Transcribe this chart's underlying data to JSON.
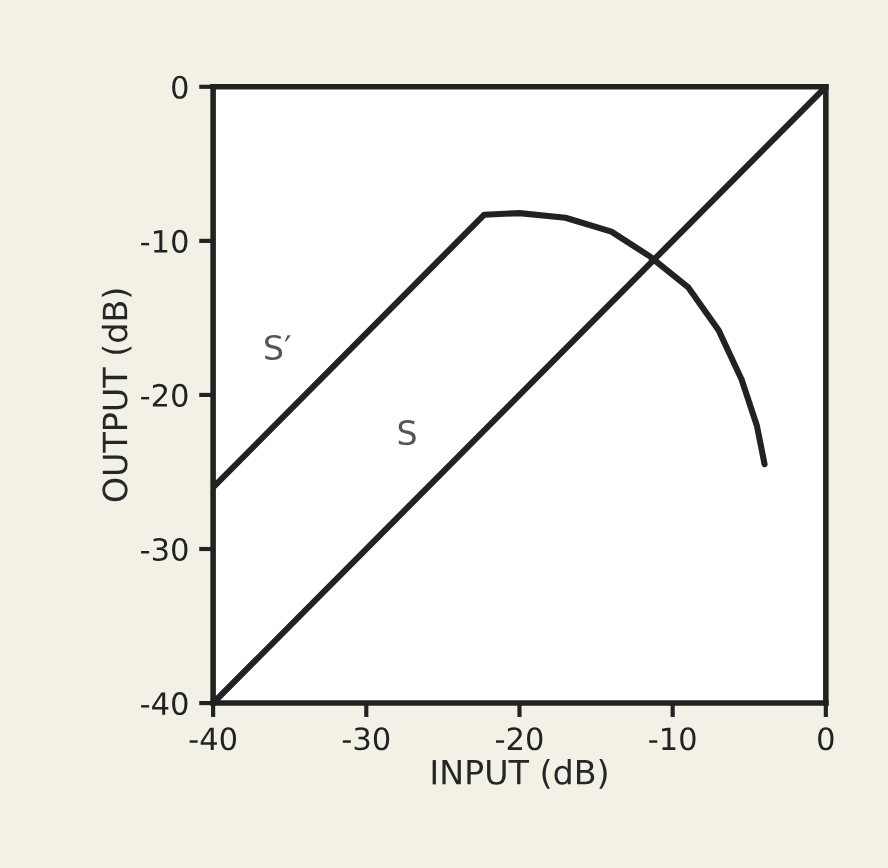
{
  "chart_data": {
    "type": "line",
    "xlabel": "INPUT (dB)",
    "ylabel": "OUTPUT (dB)",
    "xlim": [
      -40,
      0
    ],
    "ylim": [
      -40,
      0
    ],
    "xticks": [
      -40,
      -30,
      -20,
      -10,
      0
    ],
    "yticks": [
      -40,
      -30,
      -20,
      -10,
      0
    ],
    "grid": false,
    "legend": false,
    "marker": "none",
    "line_style": "solid",
    "series": [
      {
        "name": "S′",
        "color": "#222222",
        "x": [
          -40,
          -22.3,
          -20,
          -17,
          -14,
          -11.5,
          -9,
          -7,
          -5.5,
          -4.5,
          -4
        ],
        "values": [
          -26,
          -8.3,
          -8.2,
          -8.5,
          -9.4,
          -11,
          -13,
          -15.8,
          -19,
          -22,
          -24.5
        ]
      },
      {
        "name": "S",
        "color": "#222222",
        "x": [
          -40,
          0
        ],
        "values": [
          -40,
          0
        ]
      }
    ]
  }
}
